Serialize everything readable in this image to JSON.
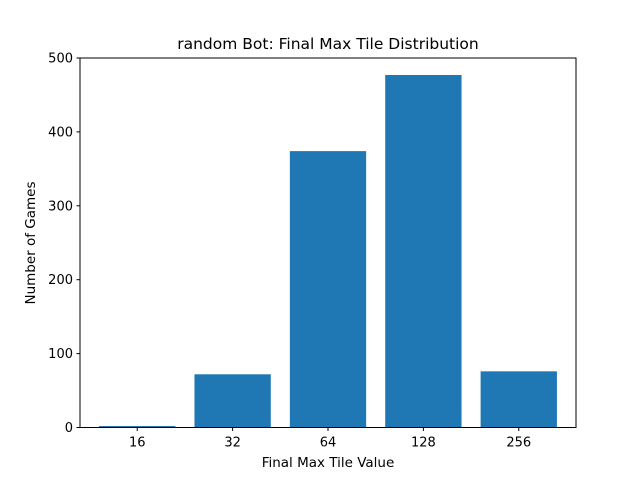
{
  "chart_data": {
    "type": "bar",
    "title": "random Bot: Final Max Tile Distribution",
    "xlabel": "Final Max Tile Value",
    "ylabel": "Number of Games",
    "categories": [
      "16",
      "32",
      "64",
      "128",
      "256"
    ],
    "values": [
      2,
      72,
      374,
      477,
      76
    ],
    "ylim": [
      0,
      500
    ],
    "yticks": [
      0,
      100,
      200,
      300,
      400,
      500
    ],
    "grid": false,
    "bar_color": "#1f77b4"
  }
}
